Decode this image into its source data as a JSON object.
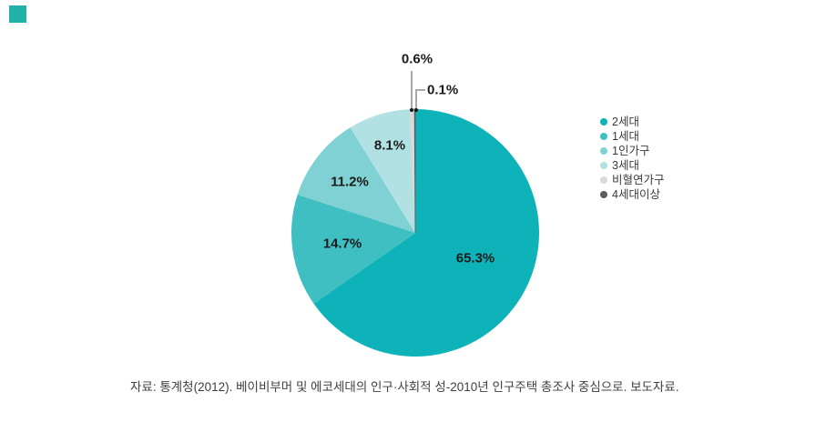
{
  "page": {
    "background": "#ffffff"
  },
  "decor": {
    "corner_square_color": "#23b2ab"
  },
  "chart_data": {
    "type": "pie",
    "title": "",
    "unit": "%",
    "direction": "clockwise",
    "start_angle_deg": 0,
    "legend_position": "right",
    "slices": [
      {
        "name": "2세대",
        "value": 65.3,
        "label": "65.3%",
        "color": "#0db3b8"
      },
      {
        "name": "1세대",
        "value": 14.7,
        "label": "14.7%",
        "color": "#40bfc3"
      },
      {
        "name": "1인가구",
        "value": 11.2,
        "label": "11.2%",
        "color": "#7fd1d4"
      },
      {
        "name": "3세대",
        "value": 8.1,
        "label": "8.1%",
        "color": "#b2e1e3"
      },
      {
        "name": "비혈연가구",
        "value": 0.6,
        "label": "0.6%",
        "color": "#d8dbdc"
      },
      {
        "name": "4세대이상",
        "value": 0.1,
        "label": "0.1%",
        "color": "#595c60"
      }
    ]
  },
  "source": {
    "text": "자료: 통계청(2012). 베이비부머 및 에코세대의 인구·사회적 성-2010년 인구주택 총조사 중심으로. 보도자료."
  }
}
